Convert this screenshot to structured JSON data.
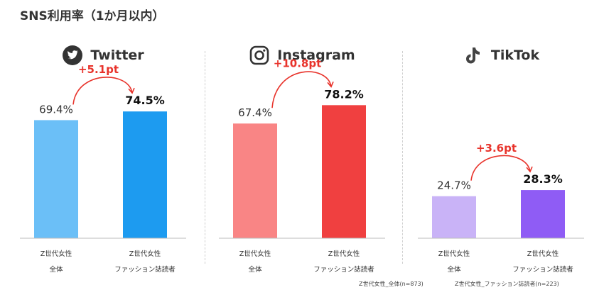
{
  "title": "SNS利用率（1か月以内）",
  "chart_data": [
    {
      "type": "bar",
      "platform": "Twitter",
      "icon": "twitter-bird-icon",
      "categories": [
        "Z世代女性\n全体",
        "Z世代女性\nファッション誌読者"
      ],
      "values": [
        69.4,
        74.5
      ],
      "value_labels": [
        "69.4%",
        "74.5%"
      ],
      "diff_label": "+5.1pt",
      "colors": [
        "#6bbff7",
        "#1d9bf0"
      ],
      "ylim": [
        0,
        100
      ]
    },
    {
      "type": "bar",
      "platform": "Instagram",
      "icon": "instagram-camera-icon",
      "categories": [
        "Z世代女性\n全体",
        "Z世代女性\nファッション誌読者"
      ],
      "values": [
        67.4,
        78.2
      ],
      "value_labels": [
        "67.4%",
        "78.2%"
      ],
      "diff_label": "+10.8pt",
      "colors": [
        "#f98585",
        "#f04040"
      ],
      "ylim": [
        0,
        100
      ]
    },
    {
      "type": "bar",
      "platform": "TikTok",
      "icon": "tiktok-note-icon",
      "categories": [
        "Z世代女性\n全体",
        "Z世代女性\nファッション誌読者"
      ],
      "values": [
        24.7,
        28.3
      ],
      "value_labels": [
        "24.7%",
        "28.3%"
      ],
      "diff_label": "+3.6pt",
      "colors": [
        "#c9b3f7",
        "#8f5cf5"
      ],
      "ylim": [
        0,
        100
      ]
    }
  ],
  "footnotes": [
    "Z世代女性_全体(n=873)",
    "Z世代女性_ファッション誌読者(n=223)"
  ],
  "accent_color": "#e8332b"
}
